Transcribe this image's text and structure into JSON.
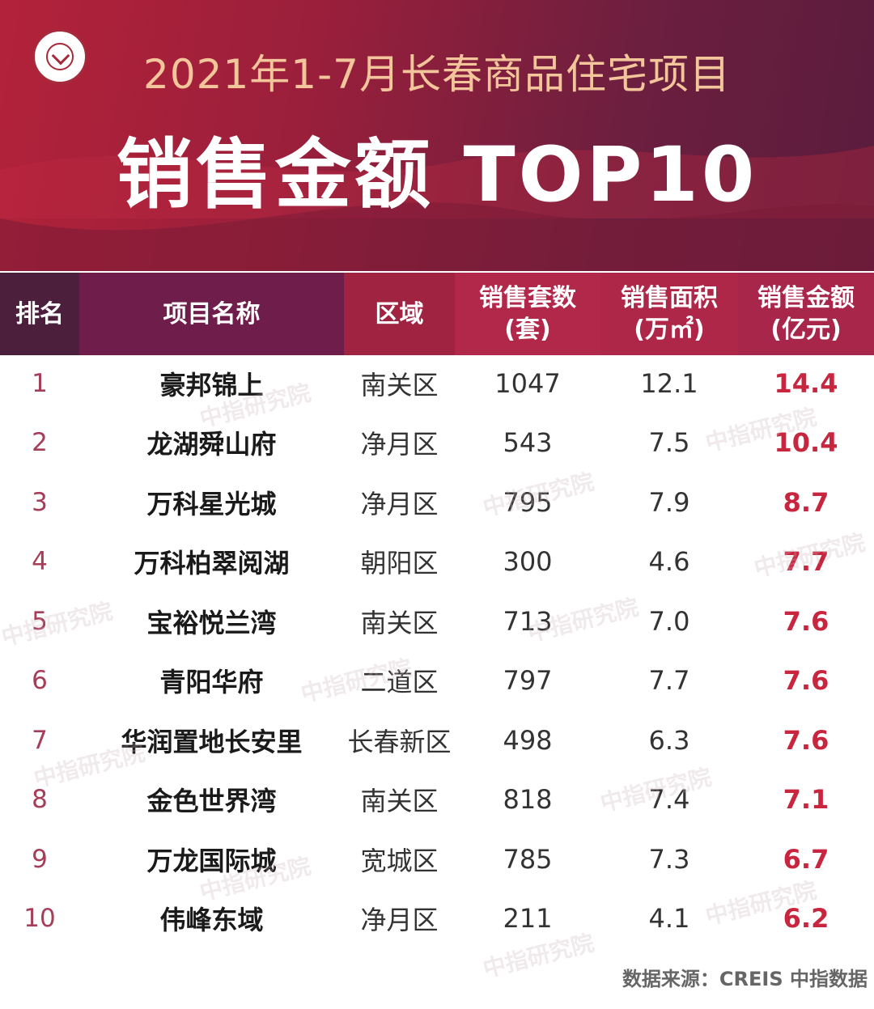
{
  "header": {
    "title_line1": "2021年1-7月长春商品住宅项目",
    "title_line2": "销售金额 TOP10"
  },
  "table": {
    "columns": {
      "rank": "排名",
      "name": "项目名称",
      "district": "区域",
      "units_line1": "销售套数",
      "units_line2": "(套)",
      "area_line1": "销售面积",
      "area_line2": "(万㎡)",
      "amount_line1": "销售金额",
      "amount_line2": "(亿元)"
    },
    "rows": [
      {
        "rank": "1",
        "name": "豪邦锦上",
        "district": "南关区",
        "units": "1047",
        "area": "12.1",
        "amount": "14.4"
      },
      {
        "rank": "2",
        "name": "龙湖舜山府",
        "district": "净月区",
        "units": "543",
        "area": "7.5",
        "amount": "10.4"
      },
      {
        "rank": "3",
        "name": "万科星光城",
        "district": "净月区",
        "units": "795",
        "area": "7.9",
        "amount": "8.7"
      },
      {
        "rank": "4",
        "name": "万科柏翠阅湖",
        "district": "朝阳区",
        "units": "300",
        "area": "4.6",
        "amount": "7.7"
      },
      {
        "rank": "5",
        "name": "宝裕悦兰湾",
        "district": "南关区",
        "units": "713",
        "area": "7.0",
        "amount": "7.6"
      },
      {
        "rank": "6",
        "name": "青阳华府",
        "district": "二道区",
        "units": "797",
        "area": "7.7",
        "amount": "7.6"
      },
      {
        "rank": "7",
        "name": "华润置地长安里",
        "district": "长春新区",
        "units": "498",
        "area": "6.3",
        "amount": "7.6"
      },
      {
        "rank": "8",
        "name": "金色世界湾",
        "district": "南关区",
        "units": "818",
        "area": "7.4",
        "amount": "7.1"
      },
      {
        "rank": "9",
        "name": "万龙国际城",
        "district": "宽城区",
        "units": "785",
        "area": "7.3",
        "amount": "6.7"
      },
      {
        "rank": "10",
        "name": "伟峰东域",
        "district": "净月区",
        "units": "211",
        "area": "4.1",
        "amount": "6.2"
      }
    ]
  },
  "watermark_text": "中指研究院",
  "source": "数据来源：CREIS 中指数据",
  "colors": {
    "banner": "#9a1f3b",
    "title_gold": "#f3c59b",
    "amount_red": "#c8253f",
    "rank_pink": "#a63d59"
  }
}
